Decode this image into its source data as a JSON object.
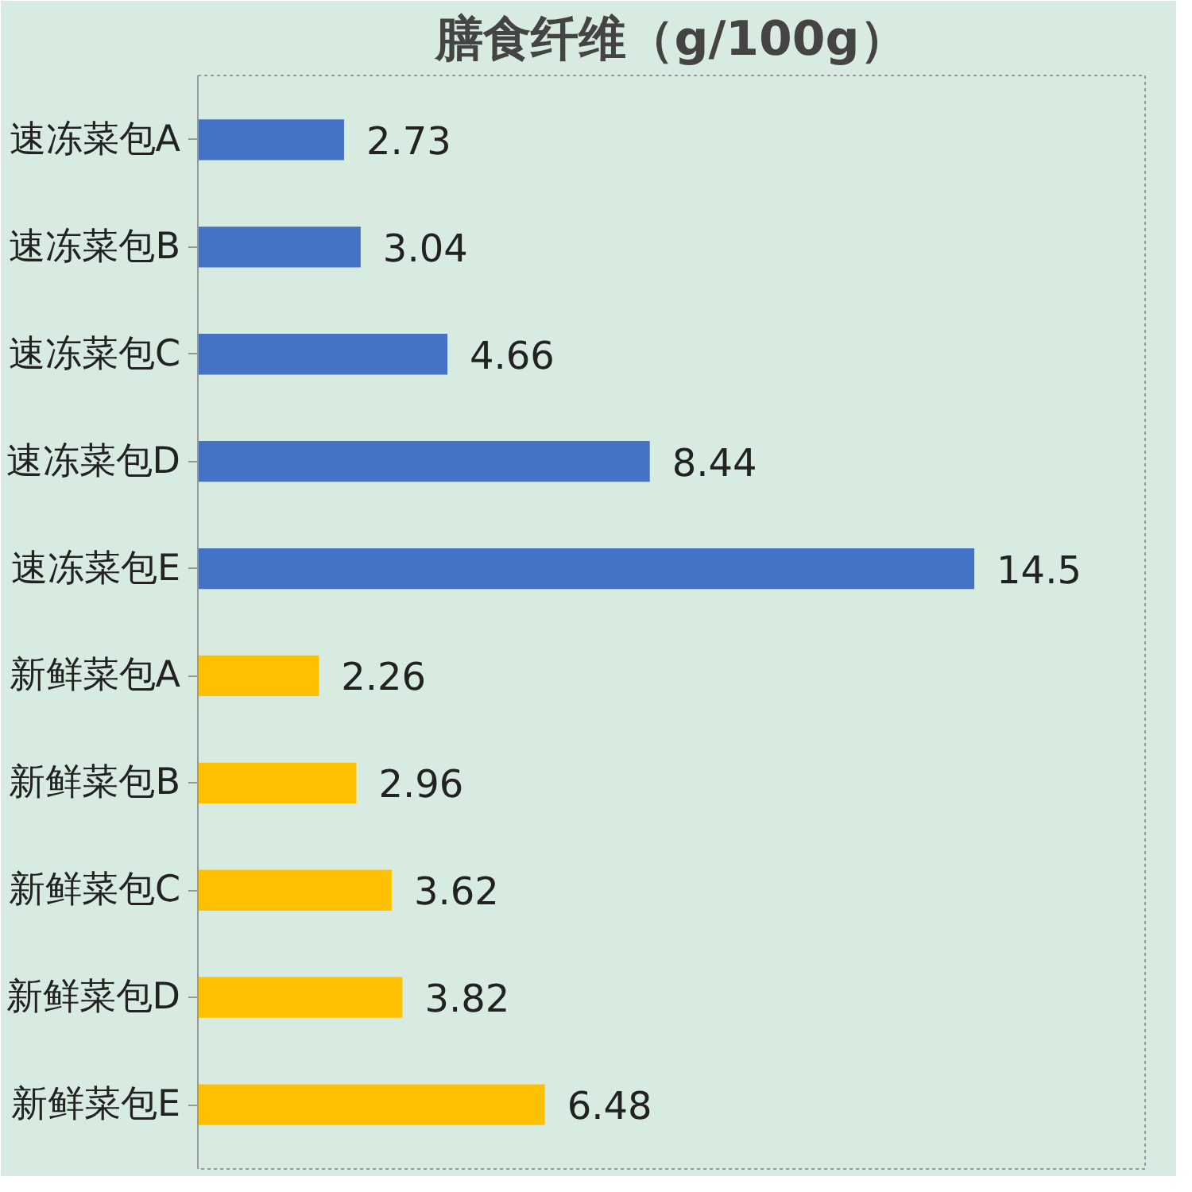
{
  "chart_data": {
    "type": "bar",
    "orientation": "horizontal",
    "title": "膳食纤维（g/100g）",
    "categories": [
      "速冻菜包A",
      "速冻菜包B",
      "速冻菜包C",
      "速冻菜包D",
      "速冻菜包E",
      "新鲜菜包A",
      "新鲜菜包B",
      "新鲜菜包C",
      "新鲜菜包D",
      "新鲜菜包E"
    ],
    "values": [
      2.73,
      3.04,
      4.66,
      8.44,
      14.5,
      2.26,
      2.96,
      3.62,
      3.82,
      6.48
    ],
    "colors": [
      "#4472c4",
      "#4472c4",
      "#4472c4",
      "#4472c4",
      "#4472c4",
      "#ffc000",
      "#ffc000",
      "#ffc000",
      "#ffc000",
      "#ffc000"
    ],
    "data_labels": true,
    "grid": false
  }
}
